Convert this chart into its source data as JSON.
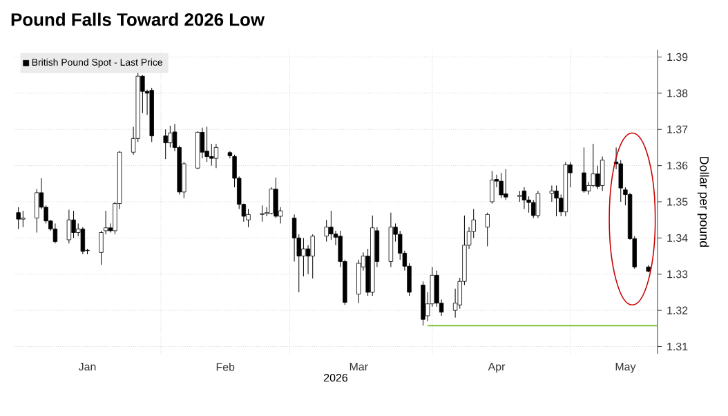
{
  "chart_data": {
    "type": "candlestick",
    "title": "Pound Falls Toward 2026 Low",
    "xlabel": "2026",
    "ylabel": "Dollar per pound",
    "xlim": [
      "2025-12-31",
      "2026-05-20"
    ],
    "xticks": [
      {
        "value": "2026-01-16",
        "label": "Jan"
      },
      {
        "value": "2026-02-01",
        "label": null
      },
      {
        "value": "2026-02-15",
        "label": "Feb"
      },
      {
        "value": "2026-03-01",
        "label": null
      },
      {
        "value": "2026-03-16",
        "label": "Mar"
      },
      {
        "value": "2026-04-01",
        "label": null
      },
      {
        "value": "2026-04-15",
        "label": "Apr"
      },
      {
        "value": "2026-05-01",
        "label": null
      },
      {
        "value": "2026-05-13",
        "label": "May"
      }
    ],
    "ylim": [
      1.308,
      1.392
    ],
    "yticks": [
      1.31,
      1.32,
      1.33,
      1.34,
      1.35,
      1.36,
      1.37,
      1.38,
      1.39
    ],
    "grid": true,
    "legend": "top left",
    "series": [
      {
        "name": "British Pound Spot - Last Price",
        "color": "#000000",
        "x": [
          "2026-01-01",
          "2026-01-02",
          "2026-01-05",
          "2026-01-06",
          "2026-01-07",
          "2026-01-08",
          "2026-01-09",
          "2026-01-12",
          "2026-01-13",
          "2026-01-14",
          "2026-01-15",
          "2026-01-16",
          "2026-01-19",
          "2026-01-20",
          "2026-01-21",
          "2026-01-22",
          "2026-01-23",
          "2026-01-26",
          "2026-01-27",
          "2026-01-28",
          "2026-01-29",
          "2026-01-30",
          "2026-02-02",
          "2026-02-03",
          "2026-02-04",
          "2026-02-05",
          "2026-02-06",
          "2026-02-09",
          "2026-02-10",
          "2026-02-11",
          "2026-02-12",
          "2026-02-13",
          "2026-02-16",
          "2026-02-17",
          "2026-02-18",
          "2026-02-19",
          "2026-02-20",
          "2026-02-23",
          "2026-02-24",
          "2026-02-25",
          "2026-02-26",
          "2026-02-27",
          "2026-03-02",
          "2026-03-03",
          "2026-03-04",
          "2026-03-05",
          "2026-03-06",
          "2026-03-09",
          "2026-03-10",
          "2026-03-11",
          "2026-03-12",
          "2026-03-13",
          "2026-03-16",
          "2026-03-17",
          "2026-03-18",
          "2026-03-19",
          "2026-03-20",
          "2026-03-23",
          "2026-03-24",
          "2026-03-25",
          "2026-03-26",
          "2026-03-27",
          "2026-03-30",
          "2026-03-31",
          "2026-04-01",
          "2026-04-02",
          "2026-04-03",
          "2026-04-06",
          "2026-04-07",
          "2026-04-08",
          "2026-04-09",
          "2026-04-10",
          "2026-04-13",
          "2026-04-14",
          "2026-04-15",
          "2026-04-16",
          "2026-04-17",
          "2026-04-20",
          "2026-04-21",
          "2026-04-22",
          "2026-04-23",
          "2026-04-24",
          "2026-04-27",
          "2026-04-28",
          "2026-04-29",
          "2026-04-30",
          "2026-05-01",
          "2026-05-04",
          "2026-05-05",
          "2026-05-06",
          "2026-05-07",
          "2026-05-08",
          "2026-05-11",
          "2026-05-12",
          "2026-05-13",
          "2026-05-14",
          "2026-05-15",
          "2026-05-18"
        ],
        "ohlc": [
          [
            1.347,
            1.3485,
            1.3425,
            1.3452
          ],
          [
            1.3452,
            1.3475,
            1.343,
            1.3455
          ],
          [
            1.3455,
            1.3535,
            1.3415,
            1.3525
          ],
          [
            1.3525,
            1.3565,
            1.348,
            1.3485
          ],
          [
            1.3485,
            1.349,
            1.344,
            1.3447
          ],
          [
            1.3447,
            1.345,
            1.342,
            1.3425
          ],
          [
            1.3425,
            1.344,
            1.3385,
            1.339
          ],
          [
            1.3395,
            1.3478,
            1.3385,
            1.345
          ],
          [
            1.345,
            1.3475,
            1.34,
            1.3415
          ],
          [
            1.3415,
            1.344,
            1.3405,
            1.3425
          ],
          [
            1.3425,
            1.343,
            1.3355,
            1.3363
          ],
          [
            1.3365,
            1.337,
            1.3355,
            1.3366
          ],
          [
            1.336,
            1.342,
            1.3326,
            1.3415
          ],
          [
            1.342,
            1.3475,
            1.341,
            1.3428
          ],
          [
            1.3428,
            1.344,
            1.3415,
            1.342
          ],
          [
            1.342,
            1.35,
            1.341,
            1.3495
          ],
          [
            1.3495,
            1.364,
            1.348,
            1.3637
          ],
          [
            1.3637,
            1.3707,
            1.363,
            1.3675
          ],
          [
            1.3675,
            1.3863,
            1.3665,
            1.3847
          ],
          [
            1.3847,
            1.385,
            1.3745,
            1.3805
          ],
          [
            1.3805,
            1.381,
            1.374,
            1.38
          ],
          [
            1.3808,
            1.3815,
            1.3665,
            1.3682
          ],
          [
            1.3682,
            1.37,
            1.3618,
            1.3663
          ],
          [
            1.3663,
            1.371,
            1.365,
            1.369
          ],
          [
            1.3693,
            1.3715,
            1.364,
            1.365
          ],
          [
            1.365,
            1.3655,
            1.352,
            1.3527
          ],
          [
            1.3527,
            1.361,
            1.351,
            1.3605
          ],
          [
            1.3593,
            1.3695,
            1.359,
            1.3692
          ],
          [
            1.3692,
            1.3705,
            1.362,
            1.3637
          ],
          [
            1.364,
            1.3707,
            1.361,
            1.3625
          ],
          [
            1.3625,
            1.366,
            1.36,
            1.362
          ],
          [
            1.362,
            1.366,
            1.3593,
            1.365
          ],
          [
            1.3636,
            1.364,
            1.362,
            1.3627
          ],
          [
            1.3625,
            1.363,
            1.354,
            1.3565
          ],
          [
            1.3565,
            1.357,
            1.348,
            1.3493
          ],
          [
            1.3493,
            1.3495,
            1.3445,
            1.346
          ],
          [
            1.345,
            1.348,
            1.343,
            1.3465
          ],
          [
            1.3465,
            1.349,
            1.3445,
            1.3467
          ],
          [
            1.3467,
            1.3485,
            1.346,
            1.347
          ],
          [
            1.3468,
            1.354,
            1.3465,
            1.3535
          ],
          [
            1.3535,
            1.3567,
            1.3455,
            1.346
          ],
          [
            1.346,
            1.3485,
            1.344,
            1.3475
          ],
          [
            1.3455,
            1.3465,
            1.3335,
            1.34
          ],
          [
            1.34,
            1.341,
            1.325,
            1.335
          ],
          [
            1.335,
            1.34,
            1.3294,
            1.337
          ],
          [
            1.337,
            1.338,
            1.33,
            1.335
          ],
          [
            1.335,
            1.341,
            1.3288,
            1.3405
          ],
          [
            1.3405,
            1.345,
            1.339,
            1.343
          ],
          [
            1.343,
            1.3475,
            1.3395,
            1.3411
          ],
          [
            1.3411,
            1.342,
            1.338,
            1.3402
          ],
          [
            1.3405,
            1.342,
            1.332,
            1.3335
          ],
          [
            1.3335,
            1.334,
            1.3215,
            1.3222
          ],
          [
            1.3245,
            1.334,
            1.322,
            1.333
          ],
          [
            1.332,
            1.336,
            1.331,
            1.335
          ],
          [
            1.335,
            1.337,
            1.324,
            1.325
          ],
          [
            1.325,
            1.3462,
            1.324,
            1.3428
          ],
          [
            1.342,
            1.343,
            1.332,
            1.3335
          ],
          [
            1.3335,
            1.347,
            1.332,
            1.343
          ],
          [
            1.343,
            1.344,
            1.339,
            1.341
          ],
          [
            1.341,
            1.342,
            1.334,
            1.3358
          ],
          [
            1.3358,
            1.3365,
            1.331,
            1.3322
          ],
          [
            1.3322,
            1.333,
            1.324,
            1.325
          ],
          [
            1.327,
            1.328,
            1.3158,
            1.3175
          ],
          [
            1.3185,
            1.325,
            1.317,
            1.3218
          ],
          [
            1.3218,
            1.332,
            1.321,
            1.3297
          ],
          [
            1.3297,
            1.331,
            1.321,
            1.322
          ],
          [
            1.322,
            1.323,
            1.3185,
            1.3195
          ],
          [
            1.32,
            1.326,
            1.318,
            1.322
          ],
          [
            1.3215,
            1.329,
            1.3205,
            1.328
          ],
          [
            1.328,
            1.3462,
            1.327,
            1.338
          ],
          [
            1.338,
            1.343,
            1.337,
            1.3418
          ],
          [
            1.3418,
            1.348,
            1.34,
            1.345
          ],
          [
            1.343,
            1.347,
            1.3377,
            1.3465
          ],
          [
            1.35,
            1.3585,
            1.3495,
            1.356
          ],
          [
            1.3562,
            1.3575,
            1.354,
            1.3557
          ],
          [
            1.3557,
            1.358,
            1.351,
            1.3519
          ],
          [
            1.3522,
            1.359,
            1.3505,
            1.3513
          ],
          [
            1.3515,
            1.353,
            1.35,
            1.3518
          ],
          [
            1.353,
            1.354,
            1.348,
            1.3505
          ],
          [
            1.3505,
            1.3515,
            1.347,
            1.3498
          ],
          [
            1.3498,
            1.3505,
            1.3455,
            1.3462
          ],
          [
            1.3462,
            1.353,
            1.3455,
            1.3523
          ],
          [
            1.3523,
            1.3545,
            1.35,
            1.353
          ],
          [
            1.353,
            1.3545,
            1.346,
            1.351
          ],
          [
            1.351,
            1.352,
            1.346,
            1.3472
          ],
          [
            1.3472,
            1.361,
            1.346,
            1.3602
          ],
          [
            1.3602,
            1.361,
            1.354,
            1.358
          ],
          [
            1.358,
            1.365,
            1.3525,
            1.353
          ],
          [
            1.353,
            1.3555,
            1.352,
            1.3545
          ],
          [
            1.3545,
            1.366,
            1.354,
            1.3577
          ],
          [
            1.3577,
            1.36,
            1.3535,
            1.3542
          ],
          [
            1.3545,
            1.3625,
            1.353,
            1.3615
          ],
          [
            1.361,
            1.365,
            1.359,
            1.3605
          ],
          [
            1.3605,
            1.3615,
            1.35,
            1.3538
          ],
          [
            1.3533,
            1.354,
            1.349,
            1.352
          ],
          [
            1.352,
            1.3525,
            1.3395,
            1.3398
          ],
          [
            1.3398,
            1.3405,
            1.3315,
            1.332
          ],
          [
            1.332,
            1.3325,
            1.3305,
            1.3308
          ]
        ]
      },
      {
        "type": "line",
        "color": "#7dc232",
        "x": [
          "2026-03-31",
          "2026-05-20"
        ],
        "values": [
          1.3158,
          1.3158
        ]
      }
    ]
  }
}
